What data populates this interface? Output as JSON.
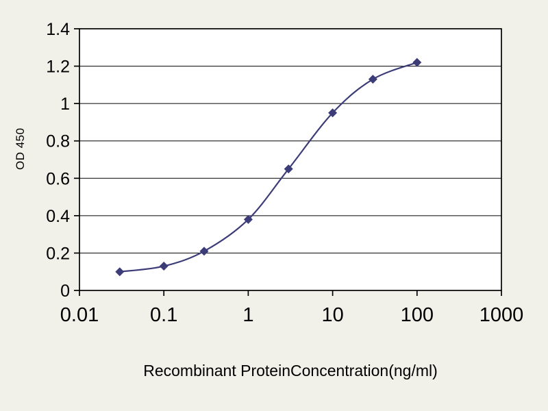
{
  "chart_data": {
    "type": "line",
    "title": "",
    "xlabel": "Recombinant ProteinConcentration(ng/ml)",
    "ylabel": "OD 450",
    "xscale": "log",
    "xlim": [
      0.01,
      1000
    ],
    "ylim": [
      0,
      1.4
    ],
    "x": [
      0.03,
      0.1,
      0.3,
      1,
      3,
      10,
      30,
      100
    ],
    "y": [
      0.1,
      0.13,
      0.21,
      0.38,
      0.65,
      0.95,
      1.13,
      1.22
    ],
    "x_ticks": [
      0.01,
      0.1,
      1,
      10,
      100,
      1000
    ],
    "x_tick_labels": [
      "0.01",
      "0.1",
      "1",
      "10",
      "100",
      "1000"
    ],
    "y_ticks": [
      0,
      0.2,
      0.4,
      0.6,
      0.8,
      1,
      1.2,
      1.4
    ],
    "y_tick_labels": [
      "0",
      "0.2",
      "0.4",
      "0.6",
      "0.8",
      "1",
      "1.2",
      "1.4"
    ],
    "grid": "horizontal",
    "legend": "none",
    "marker": "diamond",
    "series_color": "#3c3c78",
    "axis_color": "#000000",
    "background_color": "#f1f0e9",
    "plot_background": "#ffffff"
  }
}
